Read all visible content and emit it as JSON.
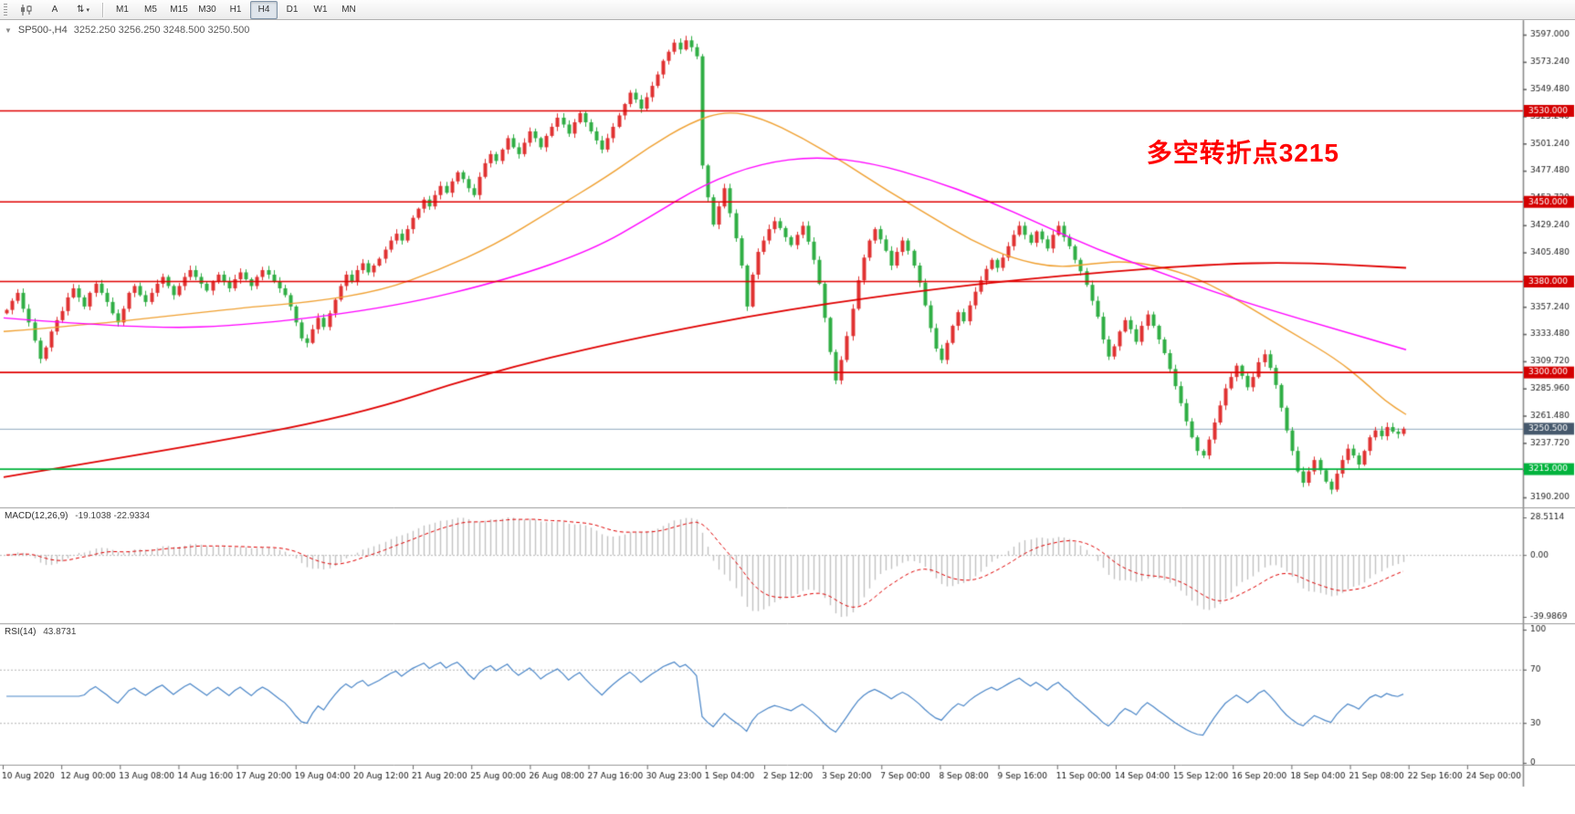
{
  "toolbar": {
    "tools": {
      "text_label": "A",
      "arrows_label": "⇅",
      "caret": "▾"
    },
    "timeframes": [
      {
        "label": "M1"
      },
      {
        "label": "M5"
      },
      {
        "label": "M15"
      },
      {
        "label": "M30"
      },
      {
        "label": "H1"
      },
      {
        "label": "H4",
        "active": true
      },
      {
        "label": "D1"
      },
      {
        "label": "W1"
      },
      {
        "label": "MN"
      }
    ]
  },
  "chart_header": {
    "symbol_period": "SP500-,H4",
    "quote": "3252.250 3256.250 3248.500 3250.500"
  },
  "annotation": {
    "text": "多空转折点3215",
    "color": "#ff0000"
  },
  "chart_data": {
    "type": "candlestick",
    "symbol_period": "SP500-,H4",
    "timeframe": "H4",
    "price_range": [
      3190.2,
      3597.0
    ],
    "last_quote": {
      "open": 3252.25,
      "high": 3256.25,
      "low": 3248.5,
      "close": 3250.5
    },
    "closes": [
      3355,
      3363,
      3370,
      3356,
      3344,
      3328,
      3312,
      3322,
      3336,
      3346,
      3354,
      3366,
      3374,
      3366,
      3358,
      3370,
      3378,
      3370,
      3362,
      3352,
      3344,
      3356,
      3370,
      3376,
      3368,
      3362,
      3370,
      3378,
      3384,
      3376,
      3368,
      3376,
      3384,
      3390,
      3384,
      3378,
      3372,
      3380,
      3386,
      3380,
      3374,
      3382,
      3388,
      3382,
      3376,
      3384,
      3390,
      3386,
      3380,
      3374,
      3368,
      3358,
      3344,
      3330,
      3326,
      3338,
      3348,
      3340,
      3352,
      3364,
      3376,
      3386,
      3380,
      3390,
      3396,
      3388,
      3394,
      3400,
      3408,
      3416,
      3422,
      3416,
      3426,
      3436,
      3444,
      3452,
      3446,
      3456,
      3464,
      3458,
      3468,
      3476,
      3470,
      3462,
      3456,
      3472,
      3484,
      3492,
      3486,
      3496,
      3506,
      3498,
      3492,
      3502,
      3512,
      3506,
      3498,
      3508,
      3516,
      3524,
      3518,
      3510,
      3520,
      3528,
      3520,
      3512,
      3504,
      3496,
      3506,
      3516,
      3526,
      3536,
      3546,
      3540,
      3532,
      3542,
      3552,
      3562,
      3574,
      3582,
      3590,
      3584,
      3592,
      3586,
      3578,
      3482,
      3454,
      3430,
      3446,
      3462,
      3440,
      3418,
      3394,
      3358,
      3386,
      3406,
      3416,
      3426,
      3433,
      3427,
      3419,
      3412,
      3421,
      3429,
      3415,
      3399,
      3378,
      3348,
      3318,
      3293,
      3311,
      3332,
      3356,
      3381,
      3401,
      3416,
      3426,
      3417,
      3407,
      3394,
      3406,
      3416,
      3407,
      3394,
      3379,
      3359,
      3339,
      3321,
      3311,
      3326,
      3341,
      3353,
      3345,
      3359,
      3371,
      3381,
      3391,
      3399,
      3392,
      3401,
      3411,
      3421,
      3429,
      3421,
      3414,
      3424,
      3417,
      3409,
      3421,
      3429,
      3419,
      3411,
      3399,
      3389,
      3377,
      3363,
      3349,
      3329,
      3314,
      3323,
      3336,
      3346,
      3338,
      3327,
      3341,
      3351,
      3341,
      3329,
      3317,
      3303,
      3288,
      3273,
      3257,
      3243,
      3231,
      3227,
      3241,
      3256,
      3271,
      3286,
      3296,
      3306,
      3297,
      3287,
      3296,
      3309,
      3316,
      3304,
      3289,
      3269,
      3249,
      3231,
      3213,
      3203,
      3213,
      3223,
      3214,
      3204,
      3197,
      3211,
      3223,
      3233,
      3227,
      3219,
      3231,
      3243,
      3249,
      3244,
      3252,
      3248,
      3246,
      3250.5
    ],
    "horizontal_lines": [
      {
        "price": 3530,
        "label": "3530.000",
        "color": "#e00000"
      },
      {
        "price": 3450,
        "label": "3450.000",
        "color": "#e00000"
      },
      {
        "price": 3380,
        "label": "3380.000",
        "color": "#e00000"
      },
      {
        "price": 3300,
        "label": "3300.000",
        "color": "#e00000"
      },
      {
        "price": 3215,
        "label": "3215.000",
        "color": "#00b33c"
      }
    ],
    "current_price": {
      "value": 3250.5,
      "label": "3250.500"
    },
    "moving_averages": [
      {
        "name": "ma-fast-orange",
        "color": "#f0a030",
        "width": 1.4,
        "points": [
          [
            0,
            3336
          ],
          [
            0.06,
            3342
          ],
          [
            0.12,
            3350
          ],
          [
            0.18,
            3358
          ],
          [
            0.22,
            3362
          ],
          [
            0.27,
            3372
          ],
          [
            0.31,
            3390
          ],
          [
            0.35,
            3412
          ],
          [
            0.39,
            3442
          ],
          [
            0.43,
            3472
          ],
          [
            0.46,
            3498
          ],
          [
            0.49,
            3520
          ],
          [
            0.515,
            3530
          ],
          [
            0.54,
            3524
          ],
          [
            0.57,
            3506
          ],
          [
            0.6,
            3484
          ],
          [
            0.63,
            3460
          ],
          [
            0.66,
            3438
          ],
          [
            0.69,
            3416
          ],
          [
            0.72,
            3400
          ],
          [
            0.75,
            3392
          ],
          [
            0.78,
            3396
          ],
          [
            0.8,
            3398
          ],
          [
            0.83,
            3392
          ],
          [
            0.86,
            3378
          ],
          [
            0.89,
            3356
          ],
          [
            0.92,
            3334
          ],
          [
            0.95,
            3312
          ],
          [
            0.97,
            3292
          ],
          [
            0.985,
            3275
          ],
          [
            1,
            3263
          ]
        ]
      },
      {
        "name": "ma-mid-magenta",
        "color": "#ff00ff",
        "width": 1.4,
        "points": [
          [
            0,
            3348
          ],
          [
            0.1,
            3338
          ],
          [
            0.18,
            3342
          ],
          [
            0.28,
            3358
          ],
          [
            0.36,
            3382
          ],
          [
            0.42,
            3408
          ],
          [
            0.46,
            3436
          ],
          [
            0.5,
            3466
          ],
          [
            0.54,
            3484
          ],
          [
            0.58,
            3490
          ],
          [
            0.62,
            3484
          ],
          [
            0.66,
            3470
          ],
          [
            0.7,
            3452
          ],
          [
            0.74,
            3430
          ],
          [
            0.78,
            3408
          ],
          [
            0.82,
            3390
          ],
          [
            0.86,
            3372
          ],
          [
            0.9,
            3356
          ],
          [
            0.95,
            3338
          ],
          [
            1,
            3320
          ]
        ]
      },
      {
        "name": "ma-slow-red",
        "color": "#e00000",
        "width": 1.8,
        "points": [
          [
            0,
            3208
          ],
          [
            0.12,
            3232
          ],
          [
            0.25,
            3262
          ],
          [
            0.34,
            3298
          ],
          [
            0.44,
            3328
          ],
          [
            0.56,
            3356
          ],
          [
            0.68,
            3376
          ],
          [
            0.78,
            3388
          ],
          [
            0.86,
            3395
          ],
          [
            0.92,
            3397
          ],
          [
            1,
            3392
          ]
        ]
      }
    ],
    "price_axis_labels": [
      "3597.000",
      "3573.240",
      "3549.480",
      "3525.240",
      "3501.240",
      "3477.480",
      "3453.720",
      "3429.240",
      "3405.480",
      "3381.720",
      "3357.240",
      "3333.480",
      "3309.720",
      "3285.960",
      "3261.480",
      "3237.720",
      "3213.960",
      "3190.200"
    ],
    "time_axis_labels": [
      "10 Aug 2020",
      "12 Aug 00:00",
      "13 Aug 08:00",
      "14 Aug 16:00",
      "17 Aug 20:00",
      "19 Aug 04:00",
      "20 Aug 12:00",
      "21 Aug 20:00",
      "25 Aug 00:00",
      "26 Aug 08:00",
      "27 Aug 16:00",
      "30 Aug 23:00",
      "1 Sep 04:00",
      "2 Sep 12:00",
      "3 Sep 20:00",
      "7 Sep 00:00",
      "8 Sep 08:00",
      "9 Sep 16:00",
      "11 Sep 00:00",
      "14 Sep 04:00",
      "15 Sep 12:00",
      "16 Sep 20:00",
      "18 Sep 04:00",
      "21 Sep 08:00",
      "22 Sep 16:00",
      "24 Sep 00:00"
    ],
    "indicators": {
      "macd": {
        "title": "MACD(12,26,9)",
        "fast": 12,
        "slow": 26,
        "signal": 9,
        "values_text": "-19.1038 -22.9334",
        "axis_labels": [
          "28.5114",
          "0.00",
          "-39.9869"
        ]
      },
      "rsi": {
        "title": "RSI(14)",
        "period": 14,
        "value_text": "43.8731",
        "axis_labels": [
          "100",
          "70",
          "30",
          "0"
        ],
        "levels": [
          70,
          30
        ]
      }
    },
    "colors": {
      "up": "#e03131",
      "down": "#2fae44",
      "macd_hist": "#c2c2c2",
      "macd_signal": "#e00000",
      "rsi_line": "#4a86c8",
      "current_price_line": "#8fa8bf",
      "badge_red": "#d40000",
      "badge_green": "#00b33c",
      "badge_current": "#45586c"
    }
  }
}
